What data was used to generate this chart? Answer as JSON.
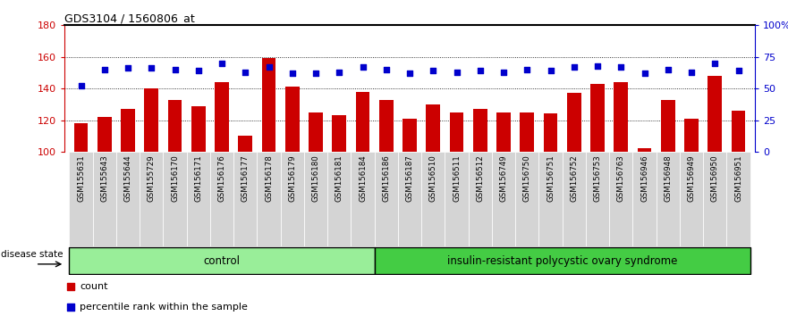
{
  "title": "GDS3104 / 1560806_at",
  "samples": [
    "GSM155631",
    "GSM155643",
    "GSM155644",
    "GSM155729",
    "GSM156170",
    "GSM156171",
    "GSM156176",
    "GSM156177",
    "GSM156178",
    "GSM156179",
    "GSM156180",
    "GSM156181",
    "GSM156184",
    "GSM156186",
    "GSM156187",
    "GSM156510",
    "GSM156511",
    "GSM156512",
    "GSM156749",
    "GSM156750",
    "GSM156751",
    "GSM156752",
    "GSM156753",
    "GSM156763",
    "GSM156946",
    "GSM156948",
    "GSM156949",
    "GSM156950",
    "GSM156951"
  ],
  "counts": [
    118,
    122,
    127,
    140,
    133,
    129,
    144,
    110,
    159,
    141,
    125,
    123,
    138,
    133,
    121,
    130,
    125,
    127,
    125,
    125,
    124,
    137,
    143,
    144,
    102,
    133,
    121,
    148,
    126
  ],
  "percentile_ranks": [
    52,
    65,
    66,
    66,
    65,
    64,
    70,
    63,
    67,
    62,
    62,
    63,
    67,
    65,
    62,
    64,
    63,
    64,
    63,
    65,
    64,
    67,
    68,
    67,
    62,
    65,
    63,
    70,
    64
  ],
  "control_count": 13,
  "bar_color": "#cc0000",
  "dot_color": "#0000cc",
  "ylim_left": [
    100,
    180
  ],
  "ylim_right": [
    0,
    100
  ],
  "yticks_left": [
    100,
    120,
    140,
    160,
    180
  ],
  "yticks_right": [
    0,
    25,
    50,
    75,
    100
  ],
  "ytick_right_labels": [
    "0",
    "25",
    "50",
    "75",
    "100%"
  ],
  "control_color": "#99ee99",
  "disease_color": "#44cc44",
  "control_label": "control",
  "disease_label": "insulin-resistant polycystic ovary syndrome",
  "legend_count_label": "count",
  "legend_pct_label": "percentile rank within the sample",
  "xlabel_disease": "disease state",
  "ticklabel_bg": "#d4d4d4"
}
